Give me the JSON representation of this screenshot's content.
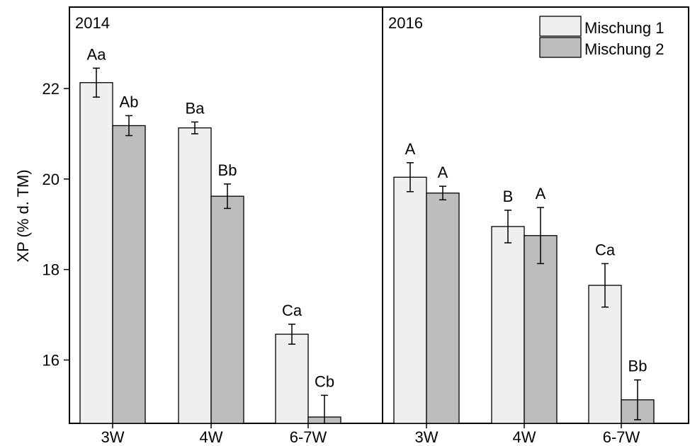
{
  "chart_data": {
    "type": "bar",
    "ylabel": "XP (% d. TM)",
    "xlabel": "",
    "ylim": [
      14.6,
      23.8
    ],
    "yticks": [
      16,
      18,
      20,
      22
    ],
    "categories": [
      "3W",
      "4W",
      "6-7W"
    ],
    "legend": {
      "placement": "top-right",
      "entries": [
        "Mischung 1",
        "Mischung 2"
      ]
    },
    "colors": {
      "Mischung 1": "#efefef",
      "Mischung 2": "#bdbdbd"
    },
    "panels": [
      {
        "label": "2014",
        "series": [
          {
            "name": "Mischung 1",
            "values": [
              22.13,
              21.13,
              16.57
            ],
            "errors": [
              0.32,
              0.13,
              0.22
            ],
            "sig": [
              "Aa",
              "Ba",
              "Ca"
            ]
          },
          {
            "name": "Mischung 2",
            "values": [
              21.18,
              19.62,
              14.74
            ],
            "errors": [
              0.22,
              0.27,
              0.48
            ],
            "sig": [
              "Ab",
              "Bb",
              "Cb"
            ]
          }
        ]
      },
      {
        "label": "2016",
        "series": [
          {
            "name": "Mischung 1",
            "values": [
              20.04,
              18.95,
              17.65
            ],
            "errors": [
              0.32,
              0.36,
              0.48
            ],
            "sig": [
              "A",
              "B",
              "Ca"
            ]
          },
          {
            "name": "Mischung 2",
            "values": [
              19.69,
              18.75,
              15.12
            ],
            "errors": [
              0.15,
              0.62,
              0.44
            ],
            "sig": [
              "A",
              "A",
              "Bb"
            ]
          }
        ]
      }
    ]
  }
}
